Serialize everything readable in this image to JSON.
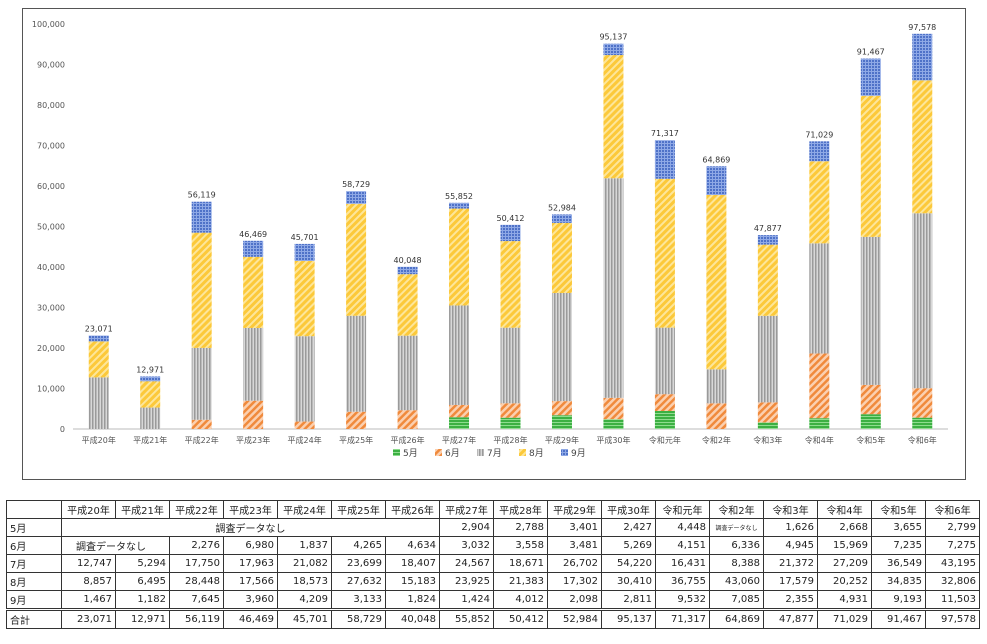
{
  "chart_data": {
    "type": "bar",
    "stacked": true,
    "categories": [
      "平成20年",
      "平成21年",
      "平成22年",
      "平成23年",
      "平成24年",
      "平成25年",
      "平成26年",
      "平成27年",
      "平成28年",
      "平成29年",
      "平成30年",
      "令和元年",
      "令和2年",
      "令和3年",
      "令和4年",
      "令和5年",
      "令和6年"
    ],
    "series": [
      {
        "name": "5月",
        "color": "#3cb043",
        "pattern": "hstripe",
        "values": [
          null,
          null,
          null,
          null,
          null,
          null,
          null,
          2904,
          2788,
          3401,
          2427,
          4448,
          null,
          1626,
          2668,
          3655,
          2799
        ]
      },
      {
        "name": "6月",
        "color": "#f08a3c",
        "pattern": "diag",
        "values": [
          null,
          null,
          2276,
          6980,
          1837,
          4265,
          4634,
          3032,
          3558,
          3481,
          5269,
          4151,
          6336,
          4945,
          15969,
          7235,
          7275
        ]
      },
      {
        "name": "7月",
        "color": "#a8a8a8",
        "pattern": "vstripe",
        "values": [
          12747,
          5294,
          17750,
          17963,
          21082,
          23699,
          18407,
          24567,
          18671,
          26702,
          54220,
          16431,
          8388,
          21372,
          27209,
          36549,
          43195
        ]
      },
      {
        "name": "8月",
        "color": "#fcc93a",
        "pattern": "diag",
        "values": [
          8857,
          6495,
          28448,
          17566,
          18573,
          27632,
          15183,
          23925,
          21383,
          17302,
          30410,
          36755,
          43060,
          17579,
          20252,
          34835,
          32806
        ]
      },
      {
        "name": "9月",
        "color": "#5b7fd0",
        "pattern": "grid",
        "values": [
          1467,
          1182,
          7645,
          3960,
          4209,
          3133,
          1824,
          1424,
          4012,
          2098,
          2811,
          9532,
          7085,
          2355,
          4931,
          9193,
          11503
        ]
      }
    ],
    "totals": [
      23071,
      12971,
      56119,
      46469,
      45701,
      58729,
      40048,
      55852,
      50412,
      52984,
      95137,
      71317,
      64869,
      47877,
      71029,
      91467,
      97578
    ],
    "total_labels": [
      "23,071",
      "12,971",
      "56,119",
      "46,469",
      "45,701",
      "58,729",
      "40,048",
      "55,852",
      "50,412",
      "52,984",
      "95,137",
      "71,317",
      "64,869",
      "47,877",
      "71,029",
      "91,467",
      "97,578"
    ],
    "ylim": [
      0,
      100000
    ],
    "yticks": [
      0,
      10000,
      20000,
      30000,
      40000,
      50000,
      60000,
      70000,
      80000,
      90000,
      100000
    ],
    "ytick_labels": [
      "0",
      "10,000",
      "20,000",
      "30,000",
      "40,000",
      "50,000",
      "60,000",
      "70,000",
      "80,000",
      "90,000",
      "100,000"
    ],
    "legend_position": "bottom",
    "grid": false
  },
  "table": {
    "corner": "",
    "headers": [
      "平成20年",
      "平成21年",
      "平成22年",
      "平成23年",
      "平成24年",
      "平成25年",
      "平成26年",
      "平成27年",
      "平成28年",
      "平成29年",
      "平成30年",
      "令和元年",
      "令和2年",
      "令和3年",
      "令和4年",
      "令和5年",
      "令和6年"
    ],
    "rows": [
      {
        "label": "5月",
        "note": "調査データなし",
        "values": [
          "2,904",
          "2,788",
          "3,401",
          "2,427",
          "4,448",
          "調査データなし",
          "1,626",
          "2,668",
          "3,655",
          "2,799"
        ]
      },
      {
        "label": "6月",
        "note": "調査データなし",
        "values": [
          "2,276",
          "6,980",
          "1,837",
          "4,265",
          "4,634",
          "3,032",
          "3,558",
          "3,481",
          "5,269",
          "4,151",
          "6,336",
          "4,945",
          "15,969",
          "7,235",
          "7,275"
        ]
      },
      {
        "label": "7月",
        "values": [
          "12,747",
          "5,294",
          "17,750",
          "17,963",
          "21,082",
          "23,699",
          "18,407",
          "24,567",
          "18,671",
          "26,702",
          "54,220",
          "16,431",
          "8,388",
          "21,372",
          "27,209",
          "36,549",
          "43,195"
        ]
      },
      {
        "label": "8月",
        "values": [
          "8,857",
          "6,495",
          "28,448",
          "17,566",
          "18,573",
          "27,632",
          "15,183",
          "23,925",
          "21,383",
          "17,302",
          "30,410",
          "36,755",
          "43,060",
          "17,579",
          "20,252",
          "34,835",
          "32,806"
        ]
      },
      {
        "label": "9月",
        "values": [
          "1,467",
          "1,182",
          "7,645",
          "3,960",
          "4,209",
          "3,133",
          "1,824",
          "1,424",
          "4,012",
          "2,098",
          "2,811",
          "9,532",
          "7,085",
          "2,355",
          "4,931",
          "9,193",
          "11,503"
        ]
      },
      {
        "label": "合計",
        "values": [
          "23,071",
          "12,971",
          "56,119",
          "46,469",
          "45,701",
          "58,729",
          "40,048",
          "55,852",
          "50,412",
          "52,984",
          "95,137",
          "71,317",
          "64,869",
          "47,877",
          "71,029",
          "91,467",
          "97,578"
        ]
      }
    ]
  }
}
